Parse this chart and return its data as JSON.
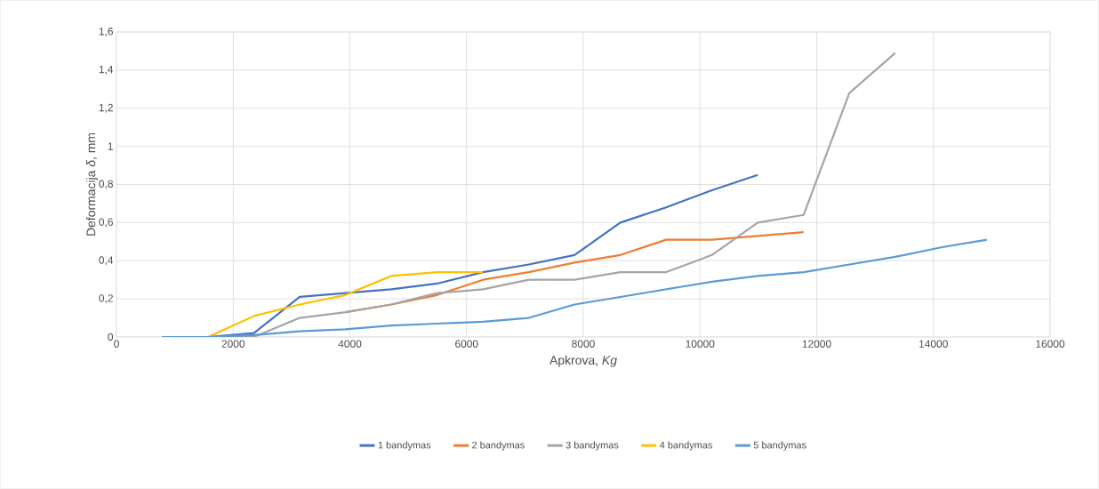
{
  "chart_data": {
    "type": "line",
    "xlabel": "Apkrova, *Kg*",
    "ylabel": "Deformacija *δ*, mm",
    "xlim": [
      0,
      16000
    ],
    "xticks": [
      0,
      2000,
      4000,
      6000,
      8000,
      10000,
      12000,
      14000,
      16000
    ],
    "ylim": [
      0,
      1.6
    ],
    "yticks": [
      0,
      {
        "value": 0.2,
        "label": "0,2"
      },
      {
        "value": 0.4,
        "label": "0,4"
      },
      {
        "value": 0.6,
        "label": "0,6"
      },
      {
        "value": 0.8,
        "label": "0,8"
      },
      1,
      {
        "value": 1.2,
        "label": "1,2"
      },
      {
        "value": 1.4,
        "label": "1,4"
      },
      {
        "value": 1.6,
        "label": "1,6"
      }
    ],
    "grid": true,
    "legend": "bottom",
    "marker": "none",
    "line_style": "solid",
    "x": [
      785,
      1570,
      2355,
      3140,
      3925,
      4710,
      5495,
      6280,
      7065,
      7850,
      8635,
      9420,
      10205,
      10990,
      11775,
      12560,
      13345,
      14130,
      14915
    ],
    "series": [
      {
        "name": "1 bandymas",
        "color": "#4472c4",
        "values": [
          0,
          0,
          0.02,
          0.21,
          0.23,
          0.25,
          0.28,
          0.34,
          0.38,
          0.43,
          0.6,
          0.68,
          0.77,
          0.85,
          null,
          null,
          null,
          null,
          null
        ]
      },
      {
        "name": "2 bandymas",
        "color": "#ed7d31",
        "values": [
          null,
          null,
          null,
          null,
          0.13,
          0.17,
          0.22,
          0.3,
          0.34,
          0.39,
          0.43,
          0.51,
          0.51,
          0.53,
          0.55,
          null,
          null,
          null,
          null
        ]
      },
      {
        "name": "3 bandymas",
        "color": "#a5a5a5",
        "values": [
          0,
          0,
          0,
          0.1,
          0.13,
          0.17,
          0.23,
          0.25,
          0.3,
          0.3,
          0.34,
          0.34,
          0.43,
          0.6,
          0.64,
          1.28,
          1.49,
          null,
          null
        ]
      },
      {
        "name": "4 bandymas",
        "color": "#ffc000",
        "values": [
          0,
          0,
          0.11,
          0.17,
          0.22,
          0.32,
          0.34,
          0.34,
          null,
          null,
          null,
          null,
          null,
          null,
          null,
          null,
          null,
          null,
          null
        ]
      },
      {
        "name": "5 bandymas",
        "color": "#5b9bd5",
        "values": [
          0,
          0,
          0.01,
          0.03,
          0.04,
          0.06,
          0.07,
          0.08,
          0.1,
          0.17,
          0.21,
          0.25,
          0.29,
          0.32,
          0.34,
          0.38,
          0.42,
          0.47,
          0.51
        ]
      }
    ]
  }
}
